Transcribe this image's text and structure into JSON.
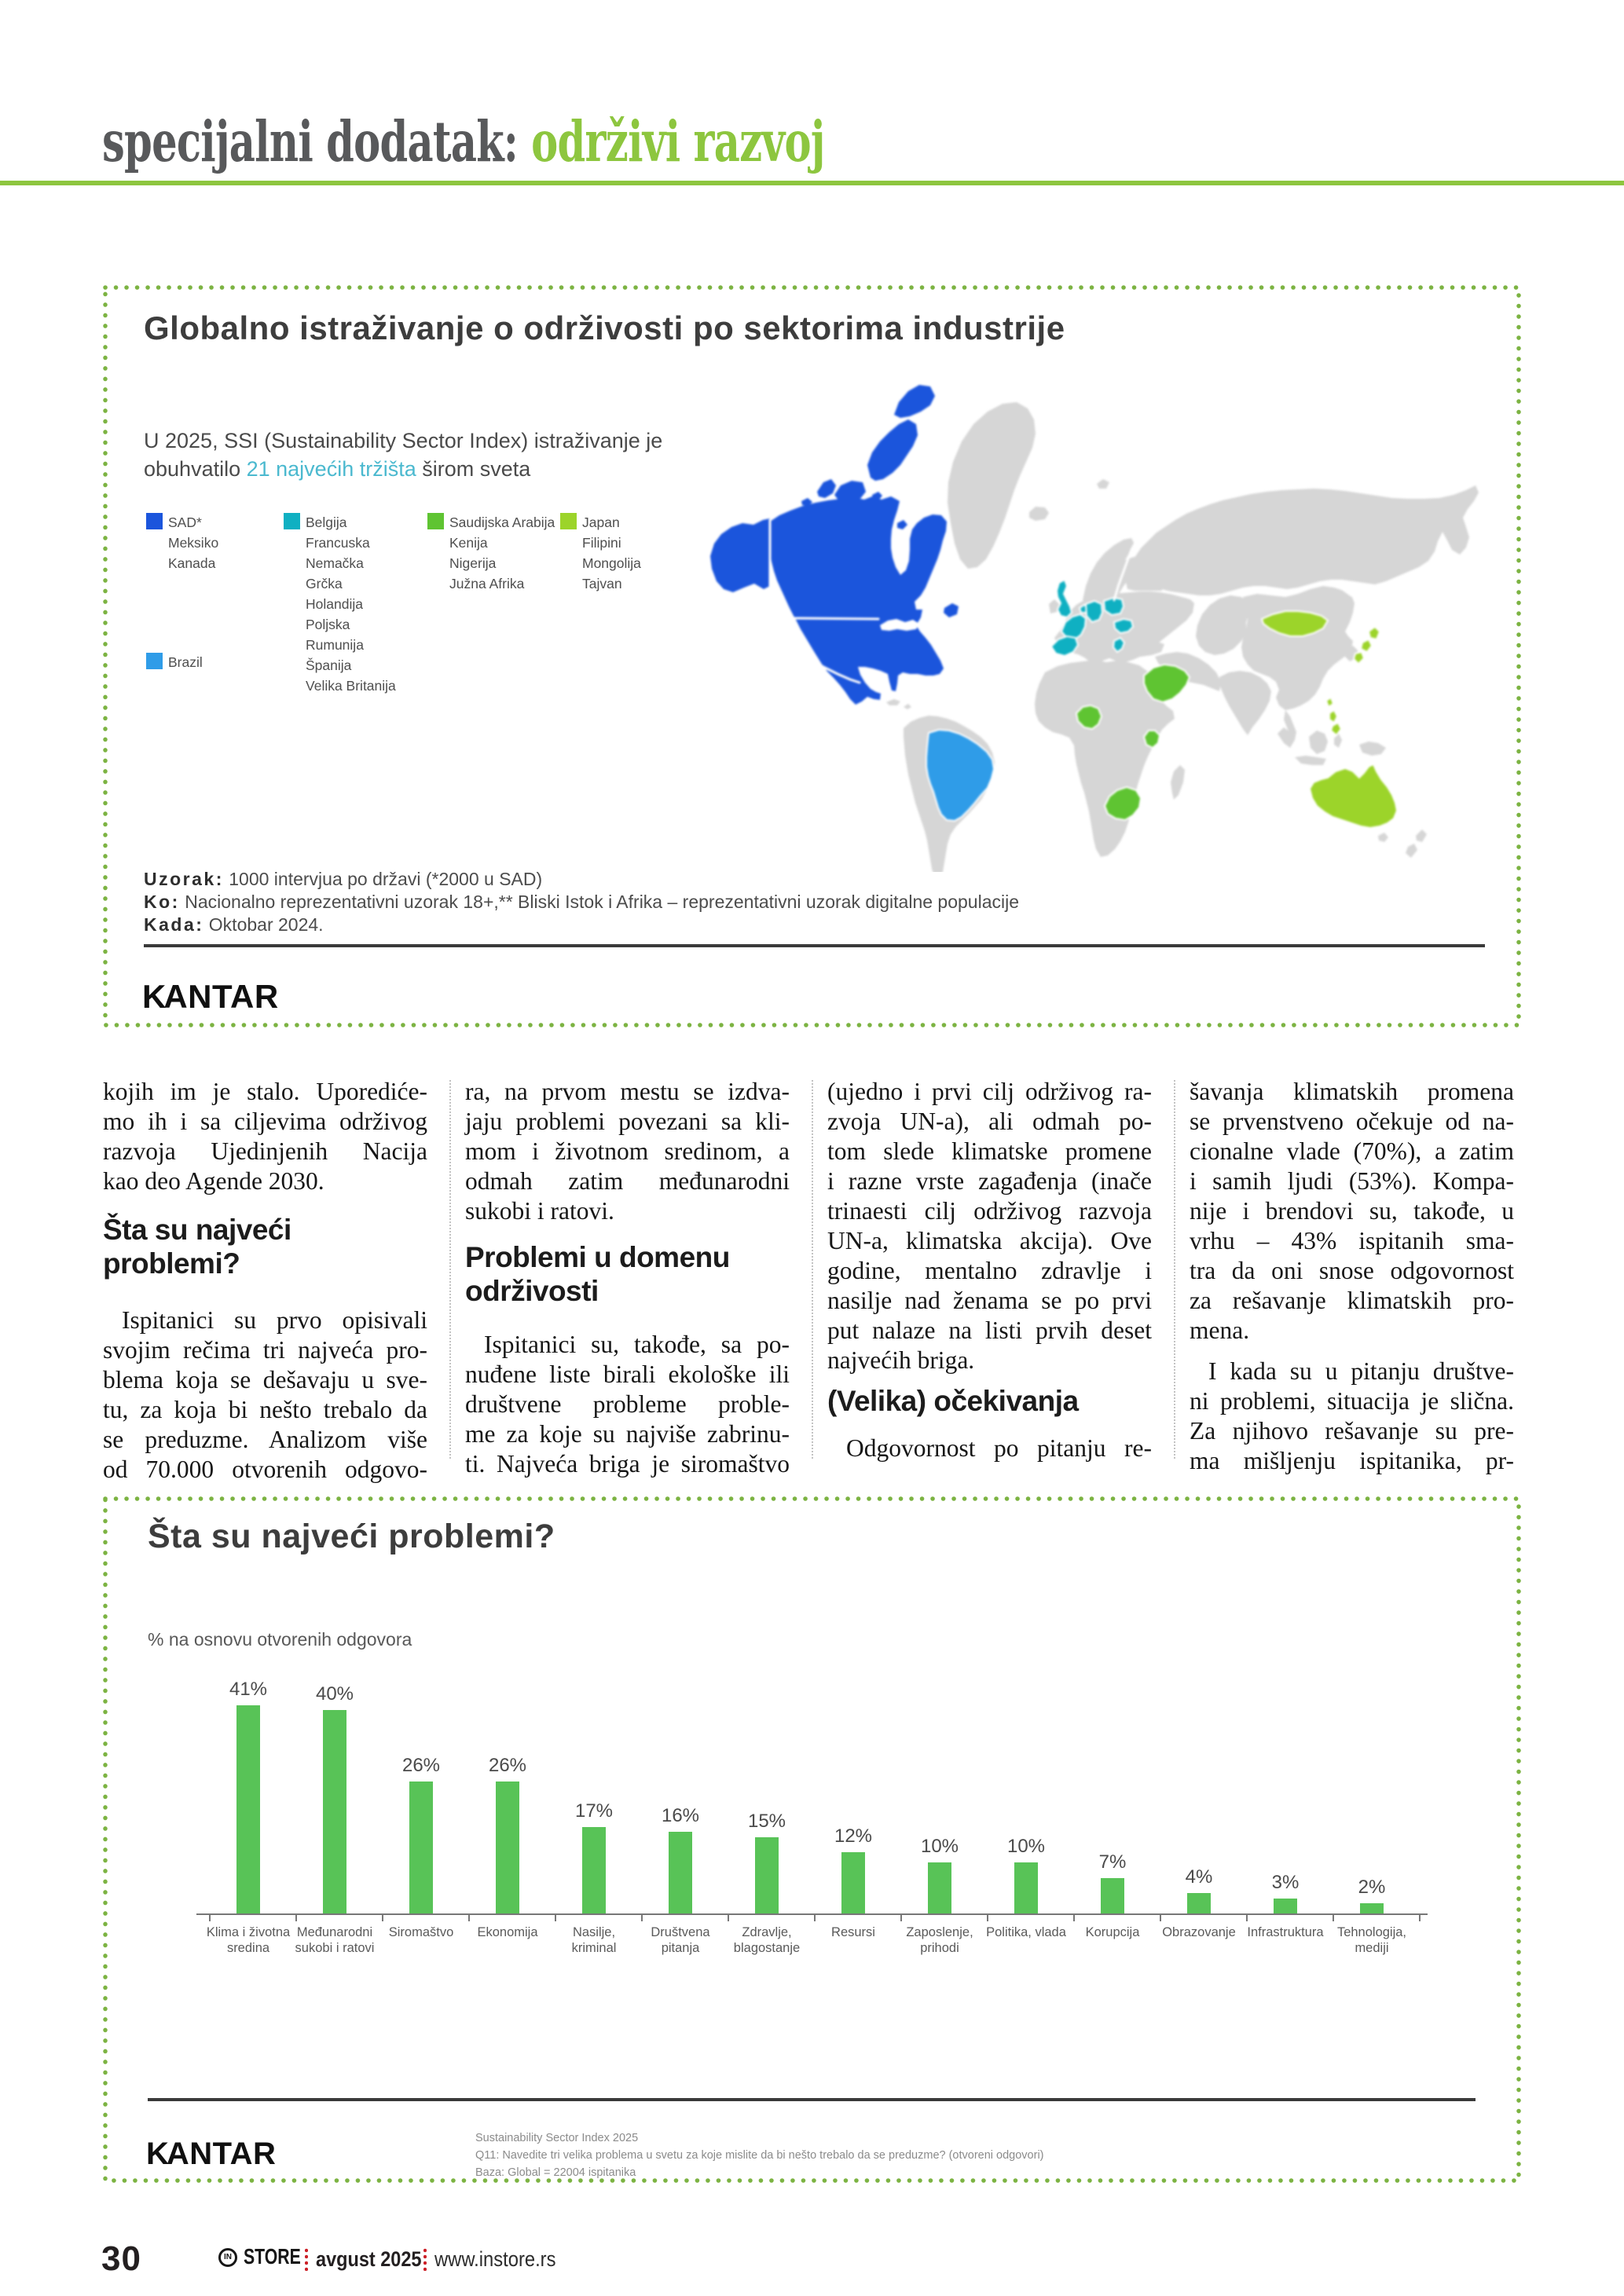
{
  "header": {
    "title_dark": "specijalni dodatak:",
    "title_green": "održivi razvoj"
  },
  "map_box": {
    "title": "Globalno istraživanje o održivosti po sektorima industrije",
    "intro_line1": "U 2025, SSI (Sustainability Sector Index) istraživanje  je",
    "intro_line2_pre": "obuhvatilo ",
    "intro_line2_highlight": "21 najvećih tržišta",
    "intro_line2_post": " širom sveta",
    "legend": [
      {
        "color": "#1b55dc",
        "items": [
          "SAD*",
          "Meksiko",
          "Kanada"
        ]
      },
      {
        "color": "#2f9ce8",
        "items": [
          "Brazil"
        ]
      },
      {
        "color": "#0fb0c2",
        "items": [
          "Belgija",
          "Francuska",
          "Nemačka",
          "Grčka",
          "Holandija",
          "Poljska",
          "Rumunija",
          "Španija",
          "Velika Britanija"
        ]
      },
      {
        "color": "#5fc432",
        "items": [
          "Saudijska Arabija",
          "Kenija",
          "Nigerija",
          "Južna Afrika"
        ]
      },
      {
        "color": "#9cd42a",
        "items": [
          "Japan",
          "Filipini",
          "Mongolija",
          "Tajvan"
        ]
      }
    ],
    "notes": [
      {
        "label": "Uzorak:",
        "text": "1000 intervjua po državi (*2000 u SAD)"
      },
      {
        "label": "Ko:",
        "text": "Nacionalno reprezentativni uzorak 18+,** Bliski Istok i Afrika – reprezentativni uzorak digitalne populacije"
      },
      {
        "label": "Kada:",
        "text": "Oktobar 2024."
      }
    ],
    "brand": "KANTAR"
  },
  "article": {
    "columns": [
      {
        "blocks": [
          {
            "type": "p",
            "indent": false,
            "ends": true,
            "lines": [
              "kojih im je stalo. Uporediće-",
              "mo ih i sa ciljevima održivog",
              "razvoja Ujedinjenih Nacija",
              "kao deo Agende 2030."
            ]
          },
          {
            "type": "h",
            "lines": [
              "Šta su najveći",
              "problemi?"
            ]
          },
          {
            "type": "p",
            "indent": true,
            "ends": false,
            "lines": [
              "Ispitanici su prvo opisivali",
              "svojim rečima tri najveća pro-",
              "blema koja se dešavaju u sve-",
              "tu, za koja bi nešto trebalo da",
              "se preduzme. Analizom više",
              "od 70.000 otvorenih odgovo-"
            ]
          }
        ]
      },
      {
        "blocks": [
          {
            "type": "p",
            "indent": false,
            "ends": true,
            "lines": [
              "ra, na prvom mestu se izdva-",
              "jaju problemi povezani sa kli-",
              "mom i životnom sredinom, a",
              "odmah zatim međunarodni",
              "sukobi i ratovi."
            ]
          },
          {
            "type": "h",
            "lines": [
              "Problemi u domenu",
              "održivosti"
            ]
          },
          {
            "type": "p",
            "indent": true,
            "ends": false,
            "lines": [
              "Ispitanici su, takođe, sa po-",
              "nuđene liste birali ekološke ili",
              "društvene probleme proble-",
              "me za koje su najviše zabrinu-",
              "ti. Najveća briga je siromaštvo"
            ]
          }
        ]
      },
      {
        "blocks": [
          {
            "type": "p",
            "indent": false,
            "ends": true,
            "lines": [
              "(ujedno i prvi cilj održivog ra-",
              "zvoja UN-a), ali odmah po-",
              "tom slede klimatske promene",
              "i razne vrste zagađenja (inače",
              "trinaesti cilj održivog razvoja",
              "UN-a, klimatska akcija). Ove",
              "godine, mentalno zdravlje i",
              "nasilje nad ženama se po prvi",
              "put nalaze na listi prvih deset",
              "najvećih briga."
            ]
          },
          {
            "type": "h",
            "lines": [
              "(Velika) očekivanja"
            ]
          },
          {
            "type": "p",
            "indent": true,
            "ends": false,
            "lines": [
              "Odgovornost po pitanju re-"
            ]
          }
        ]
      },
      {
        "blocks": [
          {
            "type": "p",
            "indent": false,
            "ends": true,
            "lines": [
              "šavanja klimatskih promena",
              "se prvenstveno očekuje od na-",
              "cionalne vlade (70%), a zatim",
              "i samih ljudi (53%). Kompa-",
              "nije i brendovi su, takođe, u",
              "vrhu – 43% ispitanih sma-",
              "tra da oni snose odgovornost",
              "za rešavanje klimatskih pro-",
              "mena."
            ]
          },
          {
            "type": "p",
            "indent": true,
            "ends": false,
            "lines": [
              "I kada su u pitanju društve-",
              "ni problemi, situacija je slična.",
              "Za njihovo rešavanje su pre-",
              "ma mišljenju ispitanika, pr-"
            ]
          }
        ]
      }
    ]
  },
  "chart_box": {
    "title": "Šta su najveći problemi?",
    "subtitle": "% na osnovu otvorenih odgovora",
    "brand": "KANTAR",
    "footnotes": [
      "Sustainability Sector Index 2025",
      "Q11: Navedite tri velika problema u svetu za koje mislite da bi nešto trebalo da se preduzme? (otvoreni odgovori)",
      "Baza: Global = 22004 ispitanika"
    ]
  },
  "chart_data": {
    "type": "bar",
    "title": "Šta su najveći problemi?",
    "subtitle": "% na osnovu otvorenih odgovora",
    "categories": [
      "Klima i životna sredina",
      "Međunarodni sukobi i ratovi",
      "Siromaštvo",
      "Ekonomija",
      "Nasilje, kriminal",
      "Društvena pitanja",
      "Zdravlje, blagostanje",
      "Resursi",
      "Zaposlenje, prihodi",
      "Politika, vlada",
      "Korupcija",
      "Obrazovanje",
      "Infrastruktura",
      "Tehnologija, mediji"
    ],
    "category_label_lines": [
      [
        "Klima i životna",
        "sredina"
      ],
      [
        "Međunarodni",
        "sukobi i ratovi"
      ],
      [
        "Siromaštvo"
      ],
      [
        "Ekonomija"
      ],
      [
        "Nasilje, kriminal"
      ],
      [
        "Društvena",
        "pitanja"
      ],
      [
        "Zdravlje,",
        "blagostanje"
      ],
      [
        "Resursi"
      ],
      [
        "Zaposlenje,",
        "prihodi"
      ],
      [
        "Politika, vlada"
      ],
      [
        "Korupcija"
      ],
      [
        "Obrazovanje"
      ],
      [
        "Infrastruktura"
      ],
      [
        "Tehnologija,",
        "mediji"
      ]
    ],
    "values": [
      41,
      40,
      26,
      26,
      17,
      16,
      15,
      12,
      10,
      10,
      7,
      4,
      3,
      2
    ],
    "value_labels": [
      "41%",
      "40%",
      "26%",
      "26%",
      "17%",
      "16%",
      "15%",
      "12%",
      "10%",
      "10%",
      "7%",
      "4%",
      "3%",
      "2%"
    ],
    "bar_color": "#58c357",
    "xlabel": "",
    "ylabel": "% na osnovu otvorenih odgovora",
    "ylim": [
      0,
      45
    ],
    "grid": false,
    "legend_position": "none"
  },
  "footer": {
    "page_number": "30",
    "logo_circle": "IN",
    "logo_text": "STORE",
    "issue": "avgust 2025",
    "website": "www.instore.rs"
  },
  "colors": {
    "accent_green": "#8dc63f",
    "dotted_border_green": "#7cb342",
    "header_gray": "#58595b",
    "bar_green": "#58c357",
    "footer_red": "#cc2128",
    "map_dark_blue": "#1b55dc",
    "map_light_blue": "#2f9ce8",
    "map_teal": "#0fb0c2",
    "map_green": "#5fc432",
    "map_light_green": "#9cd42a",
    "map_land_gray": "#d6d6d6",
    "intro_highlight_teal": "#4bb9cf"
  }
}
